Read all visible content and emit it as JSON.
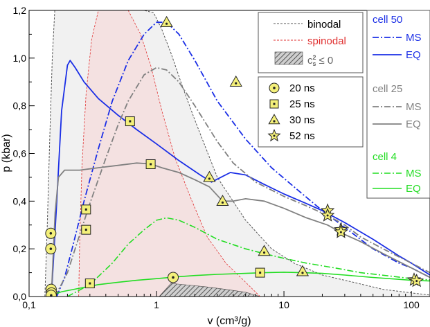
{
  "chart_data": {
    "type": "line",
    "title": "",
    "xlabel": "v (cm³/g)",
    "ylabel": "p (kbar)",
    "xscale": "log",
    "xlim": [
      0.1,
      140
    ],
    "ylim": [
      0,
      1.2
    ],
    "grid": false,
    "x_ticks": [
      0.1,
      1,
      10,
      100
    ],
    "x_tick_labels": [
      "0,1",
      "1",
      "10",
      "100"
    ],
    "y_ticks": [
      0.0,
      0.2,
      0.4,
      0.6,
      0.8,
      1.0,
      1.2
    ],
    "y_tick_labels": [
      "0,0",
      "0,2",
      "0,4",
      "0,6",
      "0,8",
      "1,0",
      "1,2"
    ],
    "colors": {
      "cell50": "#1a2ee6",
      "cell25": "#808080",
      "cell4": "#22dd22",
      "binodal": "#555555",
      "spinodal": "#e03030",
      "marker": "#f4f07a"
    },
    "legend_phase": [
      {
        "label": "binodal",
        "style": "dashed",
        "color": "#555555"
      },
      {
        "label": "spinodal",
        "style": "dashed",
        "color": "#e03030"
      },
      {
        "label": "c_s^2 ≤ 0",
        "style": "hatched"
      }
    ],
    "legend_markers": [
      {
        "label": "20 ns",
        "marker": "circle"
      },
      {
        "label": "25 ns",
        "marker": "square"
      },
      {
        "label": "30 ns",
        "marker": "triangle"
      },
      {
        "label": "52 ns",
        "marker": "star"
      }
    ],
    "legend_cells": [
      {
        "label": "cell 50",
        "color": "#1a2ee6",
        "entries": [
          "MS",
          "EQ"
        ]
      },
      {
        "label": "cell 25",
        "color": "#808080",
        "entries": [
          "MS",
          "EQ"
        ]
      },
      {
        "label": "cell 4",
        "color": "#22dd22",
        "entries": [
          "MS",
          "EQ"
        ]
      }
    ],
    "series": [
      {
        "name": "binodal",
        "color": "#555555",
        "dash": "3,2",
        "width": 1,
        "x": [
          0.159,
          0.2,
          0.3,
          0.5,
          0.65,
          0.8,
          0.95,
          1.1,
          1.3,
          1.6,
          2,
          3,
          5,
          8,
          12,
          20,
          35,
          60,
          100,
          140
        ],
        "y": [
          1.2,
          1.2,
          1.2,
          1.2,
          1.2,
          1.2,
          1.19,
          1.12,
          1.02,
          0.88,
          0.74,
          0.5,
          0.32,
          0.2,
          0.14,
          0.09,
          0.06,
          0.03,
          0.015,
          0.006
        ]
      },
      {
        "name": "binodal",
        "color": "#555555",
        "dash": "3,2",
        "width": 1,
        "x": [
          0.133,
          0.139,
          0.145,
          0.152,
          0.159
        ],
        "y": [
          0.0,
          0.3,
          0.65,
          1.0,
          1.2
        ]
      },
      {
        "name": "spinodal",
        "color": "#e03030",
        "dash": "3,2",
        "width": 0.8,
        "x": [
          0.245,
          0.25,
          0.26,
          0.28,
          0.31,
          0.35
        ],
        "y": [
          0.0,
          0.25,
          0.55,
          0.85,
          1.08,
          1.2
        ]
      },
      {
        "name": "spinodal",
        "color": "#e03030",
        "dash": "3,2",
        "width": 0.8,
        "x": [
          0.6,
          0.75,
          0.9,
          1.1,
          1.4,
          1.9,
          2.5,
          3.5,
          5,
          6.5
        ],
        "y": [
          1.2,
          1.1,
          0.97,
          0.78,
          0.58,
          0.4,
          0.25,
          0.14,
          0.06,
          0.0
        ]
      },
      {
        "name": "cell 50 MS",
        "color": "#1a2ee6",
        "dash": "9,3,2,3",
        "width": 1.8,
        "x": [
          0.165,
          0.19,
          0.22,
          0.27,
          0.35,
          0.45,
          0.6,
          0.8,
          1.0,
          1.2,
          1.5,
          2,
          3,
          5,
          8,
          12,
          20,
          30,
          50,
          80,
          100,
          140
        ],
        "y": [
          0.0,
          0.08,
          0.21,
          0.4,
          0.62,
          0.82,
          0.99,
          1.1,
          1.15,
          1.15,
          1.1,
          0.99,
          0.82,
          0.66,
          0.54,
          0.46,
          0.36,
          0.29,
          0.2,
          0.14,
          0.12,
          0.08
        ]
      },
      {
        "name": "cell 50 EQ",
        "color": "#1a2ee6",
        "width": 1.8,
        "x": [
          0.15,
          0.165,
          0.18,
          0.2,
          0.21,
          0.23,
          0.27,
          0.35,
          0.5,
          0.7,
          1.0,
          1.5,
          2.2,
          2.7,
          3.2,
          3.8,
          5,
          7,
          10,
          15,
          20,
          30,
          50,
          80,
          100,
          140
        ],
        "y": [
          0.01,
          0.4,
          0.78,
          0.97,
          0.99,
          0.96,
          0.9,
          0.83,
          0.76,
          0.7,
          0.64,
          0.57,
          0.51,
          0.48,
          0.5,
          0.52,
          0.51,
          0.47,
          0.43,
          0.39,
          0.36,
          0.31,
          0.24,
          0.17,
          0.14,
          0.09
        ]
      },
      {
        "name": "cell 25 MS",
        "color": "#808080",
        "dash": "9,3,2,3",
        "width": 1.8,
        "x": [
          0.16,
          0.2,
          0.25,
          0.3,
          0.4,
          0.5,
          0.6,
          0.8,
          1.0,
          1.2,
          1.5,
          2,
          3,
          4,
          6,
          10,
          15,
          22,
          30,
          40,
          60,
          100,
          140
        ],
        "y": [
          0.0,
          0.1,
          0.26,
          0.39,
          0.58,
          0.72,
          0.82,
          0.93,
          0.96,
          0.95,
          0.9,
          0.8,
          0.65,
          0.56,
          0.48,
          0.42,
          0.38,
          0.34,
          0.3,
          0.25,
          0.2,
          0.14,
          0.1
        ]
      },
      {
        "name": "cell 25 EQ",
        "color": "#808080",
        "width": 1.8,
        "x": [
          0.15,
          0.16,
          0.17,
          0.19,
          0.25,
          0.35,
          0.5,
          0.7,
          0.9,
          1.1,
          1.5,
          2,
          2.6,
          3.3,
          4,
          5,
          7,
          10,
          15,
          22,
          30,
          40,
          60,
          100,
          140
        ],
        "y": [
          0.02,
          0.35,
          0.5,
          0.53,
          0.53,
          0.54,
          0.55,
          0.56,
          0.556,
          0.54,
          0.52,
          0.49,
          0.46,
          0.4,
          0.4,
          0.41,
          0.4,
          0.37,
          0.33,
          0.3,
          0.26,
          0.23,
          0.18,
          0.12,
          0.08
        ]
      },
      {
        "name": "cell 4 MS",
        "color": "#22dd22",
        "dash": "9,3,2,3",
        "width": 1.6,
        "x": [
          0.2,
          0.3,
          0.45,
          0.6,
          0.8,
          1.0,
          1.2,
          1.5,
          2,
          3,
          5,
          7,
          10,
          15,
          25,
          40,
          70,
          100,
          140
        ],
        "y": [
          0.0,
          0.05,
          0.14,
          0.22,
          0.28,
          0.32,
          0.33,
          0.32,
          0.29,
          0.24,
          0.2,
          0.18,
          0.16,
          0.14,
          0.12,
          0.1,
          0.085,
          0.075,
          0.07
        ]
      },
      {
        "name": "cell 4 EQ",
        "color": "#22dd22",
        "width": 1.6,
        "x": [
          0.14,
          0.18,
          0.25,
          0.35,
          0.5,
          0.7,
          1.0,
          1.4,
          2,
          3,
          5,
          7,
          10,
          14,
          20,
          30,
          50,
          80,
          100,
          140
        ],
        "y": [
          0.0,
          0.02,
          0.035,
          0.05,
          0.06,
          0.068,
          0.075,
          0.082,
          0.088,
          0.093,
          0.097,
          0.1,
          0.102,
          0.1,
          0.097,
          0.09,
          0.08,
          0.072,
          0.068,
          0.065
        ]
      }
    ],
    "markers": [
      {
        "time": "20 ns",
        "marker": "circle",
        "x": 0.148,
        "y": 0.265
      },
      {
        "time": "20 ns",
        "marker": "circle",
        "x": 0.148,
        "y": 0.2
      },
      {
        "time": "20 ns",
        "marker": "circle",
        "x": 0.149,
        "y": 0.03
      },
      {
        "time": "20 ns",
        "marker": "circle",
        "x": 0.15,
        "y": 0.015
      },
      {
        "time": "20 ns",
        "marker": "circle",
        "x": 0.149,
        "y": 0.005
      },
      {
        "time": "20 ns",
        "marker": "circle",
        "x": 1.35,
        "y": 0.08
      },
      {
        "time": "25 ns",
        "marker": "square",
        "x": 0.28,
        "y": 0.365
      },
      {
        "time": "25 ns",
        "marker": "square",
        "x": 0.28,
        "y": 0.28
      },
      {
        "time": "25 ns",
        "marker": "square",
        "x": 0.3,
        "y": 0.055
      },
      {
        "time": "25 ns",
        "marker": "square",
        "x": 0.62,
        "y": 0.735
      },
      {
        "time": "25 ns",
        "marker": "square",
        "x": 0.9,
        "y": 0.555
      },
      {
        "time": "25 ns",
        "marker": "square",
        "x": 6.5,
        "y": 0.1
      },
      {
        "time": "30 ns",
        "marker": "triangle",
        "x": 1.2,
        "y": 1.15
      },
      {
        "time": "30 ns",
        "marker": "triangle",
        "x": 4.2,
        "y": 0.9
      },
      {
        "time": "30 ns",
        "marker": "triangle",
        "x": 2.6,
        "y": 0.5
      },
      {
        "time": "30 ns",
        "marker": "triangle",
        "x": 3.3,
        "y": 0.4
      },
      {
        "time": "30 ns",
        "marker": "triangle",
        "x": 7,
        "y": 0.19
      },
      {
        "time": "30 ns",
        "marker": "triangle",
        "x": 14,
        "y": 0.105
      },
      {
        "time": "52 ns",
        "marker": "star",
        "x": 22,
        "y": 0.36
      },
      {
        "time": "52 ns",
        "marker": "star",
        "x": 22,
        "y": 0.34
      },
      {
        "time": "52 ns",
        "marker": "star",
        "x": 28,
        "y": 0.28
      },
      {
        "time": "52 ns",
        "marker": "star",
        "x": 28,
        "y": 0.27
      },
      {
        "time": "52 ns",
        "marker": "star",
        "x": 105,
        "y": 0.07
      },
      {
        "time": "52 ns",
        "marker": "star",
        "x": 110,
        "y": 0.065
      }
    ]
  }
}
